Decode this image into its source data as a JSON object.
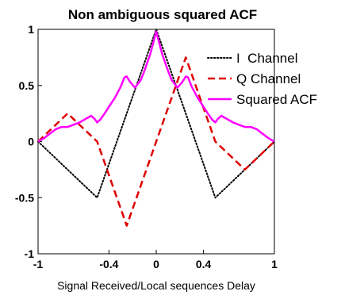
{
  "chart_data": {
    "type": "line",
    "title": "Non ambiguous squared ACF",
    "xlabel": "Signal Received/Local sequences Delay",
    "ylabel": "",
    "xlim": [
      -1,
      1
    ],
    "ylim": [
      -1,
      1
    ],
    "x_ticks": [
      {
        "value": -1,
        "label": "-1"
      },
      {
        "value": -0.4,
        "label": "-0.4"
      },
      {
        "value": 0,
        "label": "0"
      },
      {
        "value": 0.4,
        "label": "0.4"
      },
      {
        "value": 1,
        "label": "1"
      }
    ],
    "y_ticks": [
      {
        "value": 1,
        "label": "1"
      },
      {
        "value": 0.5,
        "label": "0.5"
      },
      {
        "value": 0,
        "label": "0"
      },
      {
        "value": -0.5,
        "label": "-0.5"
      },
      {
        "value": -1,
        "label": "-1"
      }
    ],
    "grid": false,
    "legend_position": "top-right",
    "series": [
      {
        "name": "I  Channel",
        "style": "dotted",
        "color": "#000000",
        "points": [
          [
            -1,
            0
          ],
          [
            -0.5,
            -0.5
          ],
          [
            0,
            1
          ],
          [
            0.5,
            -0.5
          ],
          [
            1,
            0
          ]
        ]
      },
      {
        "name": "Q Channel",
        "style": "dashed",
        "color": "#e00000",
        "points": [
          [
            -1,
            0
          ],
          [
            -0.75,
            0.25
          ],
          [
            -0.5,
            0
          ],
          [
            -0.25,
            -0.75
          ],
          [
            0,
            0
          ],
          [
            0.25,
            0.75
          ],
          [
            0.5,
            0
          ],
          [
            0.75,
            -0.25
          ],
          [
            1,
            0
          ]
        ]
      },
      {
        "name": "Squared ACF",
        "style": "solid",
        "color": "#ff00ff",
        "points": [
          [
            -1,
            0
          ],
          [
            -0.95,
            0.03
          ],
          [
            -0.9,
            0.07
          ],
          [
            -0.85,
            0.11
          ],
          [
            -0.8,
            0.13
          ],
          [
            -0.75,
            0.13
          ],
          [
            -0.7,
            0.15
          ],
          [
            -0.65,
            0.17
          ],
          [
            -0.6,
            0.2
          ],
          [
            -0.55,
            0.23
          ],
          [
            -0.52,
            0.2
          ],
          [
            -0.5,
            0.17
          ],
          [
            -0.47,
            0.2
          ],
          [
            -0.43,
            0.26
          ],
          [
            -0.4,
            0.31
          ],
          [
            -0.35,
            0.39
          ],
          [
            -0.3,
            0.49
          ],
          [
            -0.27,
            0.57
          ],
          [
            -0.25,
            0.58
          ],
          [
            -0.22,
            0.53
          ],
          [
            -0.18,
            0.48
          ],
          [
            -0.13,
            0.55
          ],
          [
            -0.1,
            0.63
          ],
          [
            -0.05,
            0.78
          ],
          [
            0,
            0.98
          ],
          [
            0.05,
            0.78
          ],
          [
            0.1,
            0.63
          ],
          [
            0.13,
            0.55
          ],
          [
            0.18,
            0.48
          ],
          [
            0.22,
            0.53
          ],
          [
            0.25,
            0.58
          ],
          [
            0.27,
            0.57
          ],
          [
            0.3,
            0.49
          ],
          [
            0.35,
            0.39
          ],
          [
            0.4,
            0.31
          ],
          [
            0.43,
            0.26
          ],
          [
            0.47,
            0.2
          ],
          [
            0.5,
            0.17
          ],
          [
            0.52,
            0.2
          ],
          [
            0.55,
            0.23
          ],
          [
            0.6,
            0.2
          ],
          [
            0.65,
            0.17
          ],
          [
            0.7,
            0.15
          ],
          [
            0.75,
            0.13
          ],
          [
            0.8,
            0.13
          ],
          [
            0.85,
            0.11
          ],
          [
            0.9,
            0.07
          ],
          [
            0.95,
            0.03
          ],
          [
            1,
            0
          ]
        ]
      }
    ]
  }
}
